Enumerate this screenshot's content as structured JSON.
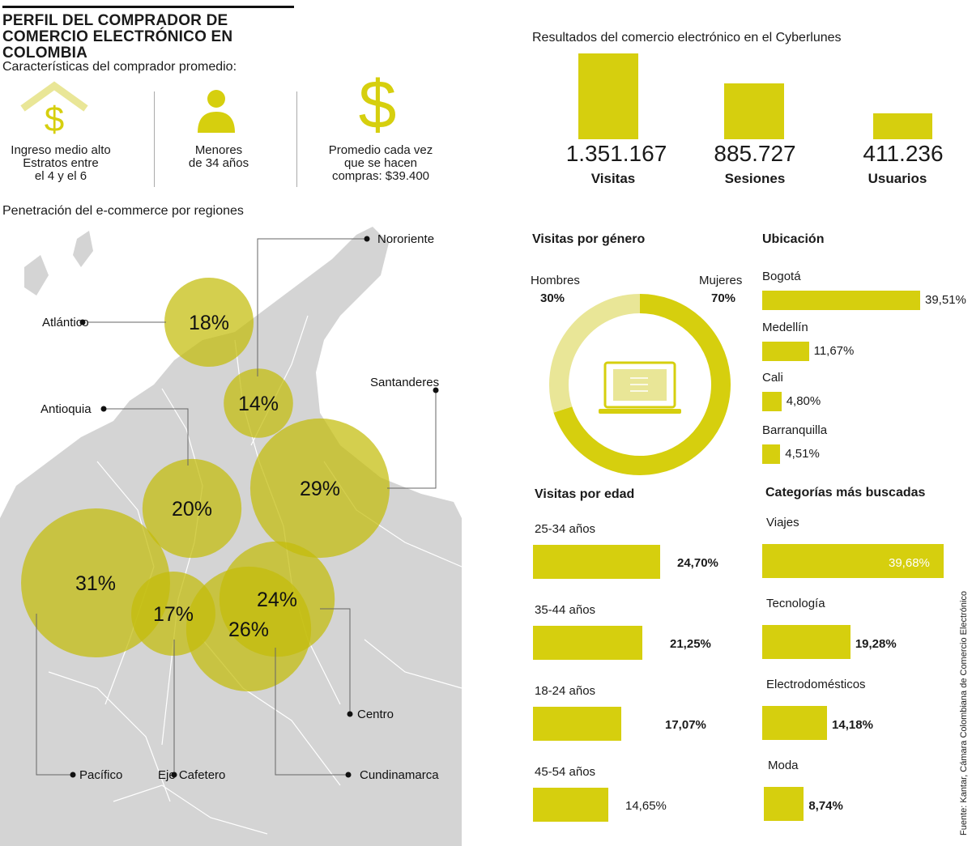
{
  "title": "PERFIL DEL COMPRADOR DE COMERCIO ELECTRÓNICO EN COLOMBIA",
  "features": {
    "heading": "Características del comprador promedio:",
    "items": [
      {
        "icon": "house-dollar-icon",
        "lines": [
          "Ingreso medio alto",
          "Estratos entre",
          "el 4 y el 6"
        ]
      },
      {
        "icon": "person-icon",
        "lines": [
          "Menores",
          "de 34 años"
        ]
      },
      {
        "icon": "dollar-icon",
        "lines": [
          "Promedio cada vez",
          "que se hacen",
          "compras: $39.400"
        ]
      }
    ]
  },
  "cyberlunes": {
    "heading": "Resultados del comercio electrónico en el Cyberlunes",
    "items": [
      {
        "value": "1.351.167",
        "label": "Visitas",
        "amount": 1351167
      },
      {
        "value": "885.727",
        "label": "Sesiones",
        "amount": 885727
      },
      {
        "value": "411.236",
        "label": "Usuarios",
        "amount": 411236
      }
    ]
  },
  "map": {
    "heading": "Penetración del e-commerce por regiones"
  },
  "gender": {
    "heading": "Visitas por género",
    "left_label": "Hombres",
    "left_value": "30%",
    "right_label": "Mujeres",
    "right_value": "70%"
  },
  "location": {
    "heading": "Ubicación"
  },
  "age": {
    "heading": "Visitas por edad"
  },
  "categories": {
    "heading": "Categorías más buscadas"
  },
  "source": "Fuente: Kantar, Cámara Colombiana de Comercio Electrónico",
  "colors": {
    "accent": "#d6cf0e",
    "accent_light": "#e9e697",
    "bubble": "#c4bd0a",
    "map": "#d4d4d4",
    "text": "#1a1a1a"
  },
  "chart_data": [
    {
      "type": "bar",
      "name": "Resultados del comercio electrónico en el Cyberlunes",
      "categories": [
        "Visitas",
        "Sesiones",
        "Usuarios"
      ],
      "values": [
        1351167,
        885727,
        411236
      ]
    },
    {
      "type": "pie",
      "name": "Visitas por género",
      "categories": [
        "Hombres",
        "Mujeres"
      ],
      "values": [
        30,
        70
      ]
    },
    {
      "type": "bar",
      "name": "Ubicación",
      "categories": [
        "Bogotá",
        "Medellín",
        "Cali",
        "Barranquilla"
      ],
      "values": [
        39.51,
        11.67,
        4.8,
        4.51
      ],
      "labels": [
        "39,51%",
        "11,67%",
        "4,80%",
        "4,51%"
      ]
    },
    {
      "type": "bar",
      "name": "Visitas por edad",
      "categories": [
        "25-34 años",
        "35-44 años",
        "18-24 años",
        "45-54 años"
      ],
      "values": [
        24.7,
        21.25,
        17.07,
        14.65
      ],
      "labels": [
        "24,70%",
        "21,25%",
        "17,07%",
        "14,65%"
      ]
    },
    {
      "type": "bar",
      "name": "Categorías más buscadas",
      "categories": [
        "Viajes",
        "Tecnología",
        "Electrodomésticos",
        "Moda"
      ],
      "values": [
        39.68,
        19.28,
        14.18,
        8.74
      ],
      "labels": [
        "39,68%",
        "19,28%",
        "14,18%",
        "8,74%"
      ]
    },
    {
      "type": "scatter",
      "name": "Penetración del e-commerce por regiones",
      "categories": [
        "Atlántico",
        "Nororiente",
        "Santanderes",
        "Antioquia",
        "Pacífico",
        "Eje Cafetero",
        "Cundinamarca",
        "Centro"
      ],
      "values": [
        18,
        14,
        29,
        20,
        31,
        17,
        26,
        24
      ],
      "labels": [
        "18%",
        "14%",
        "29%",
        "20%",
        "31%",
        "17%",
        "26%",
        "24%"
      ]
    }
  ]
}
